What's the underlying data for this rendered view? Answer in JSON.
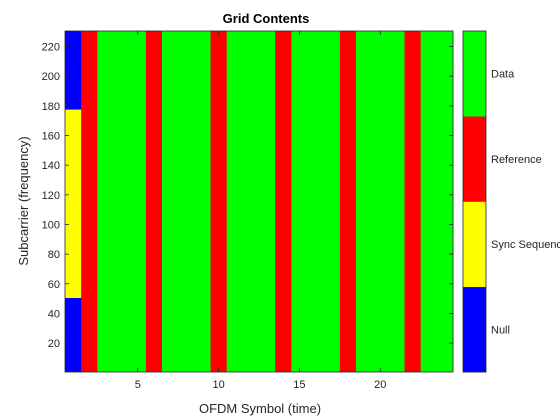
{
  "chart_data": {
    "type": "heatmap",
    "title": "Grid Contents",
    "xlabel": "OFDM Symbol (time)",
    "ylabel": "Subcarrier (frequency)",
    "xlim": [
      0.5,
      24.5
    ],
    "ylim": [
      0.5,
      230.5
    ],
    "xticks": [
      5,
      10,
      15,
      20
    ],
    "yticks": [
      20,
      40,
      60,
      80,
      100,
      120,
      140,
      160,
      180,
      200,
      220
    ],
    "num_symbols": 24,
    "num_subcarriers": 230,
    "cells": [
      {
        "symbol": 1,
        "subcarrier_from": 1,
        "subcarrier_to": 50,
        "class": "Null"
      },
      {
        "symbol": 1,
        "subcarrier_from": 51,
        "subcarrier_to": 177,
        "class": "Sync Sequence"
      },
      {
        "symbol": 1,
        "subcarrier_from": 178,
        "subcarrier_to": 230,
        "class": "Null"
      },
      {
        "symbol": 2,
        "subcarrier_from": 1,
        "subcarrier_to": 230,
        "class": "Reference"
      },
      {
        "symbol": 6,
        "subcarrier_from": 1,
        "subcarrier_to": 230,
        "class": "Reference"
      },
      {
        "symbol": 10,
        "subcarrier_from": 1,
        "subcarrier_to": 230,
        "class": "Reference"
      },
      {
        "symbol": 14,
        "subcarrier_from": 1,
        "subcarrier_to": 230,
        "class": "Reference"
      },
      {
        "symbol": 18,
        "subcarrier_from": 1,
        "subcarrier_to": 230,
        "class": "Reference"
      },
      {
        "symbol": 22,
        "subcarrier_from": 1,
        "subcarrier_to": 230,
        "class": "Reference"
      }
    ],
    "default_class": "Data",
    "colorbar": {
      "categories": [
        {
          "label": "Null",
          "color": "#0000ff"
        },
        {
          "label": "Sync Sequence",
          "color": "#ffff00"
        },
        {
          "label": "Reference",
          "color": "#ff0000"
        },
        {
          "label": "Data",
          "color": "#00ff00"
        }
      ]
    },
    "grid": false
  }
}
